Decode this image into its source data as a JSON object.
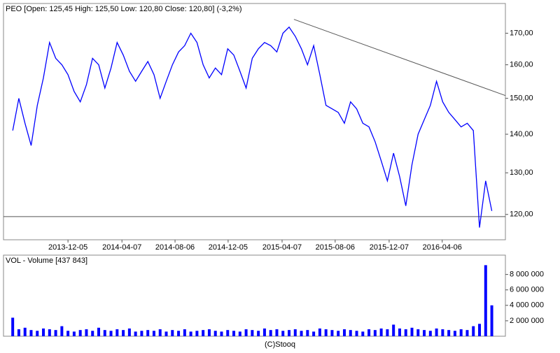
{
  "chart_data": [
    {
      "type": "line",
      "title": "PEO [Open: 125,45  High: 125,50  Low: 120,80  Close: 120,80] (-3,2%)",
      "log_scale": true,
      "color": "#0000ff",
      "x": [
        "2013-08-01",
        "2013-08-15",
        "2013-08-29",
        "2013-09-12",
        "2013-09-26",
        "2013-10-10",
        "2013-10-24",
        "2013-11-07",
        "2013-11-21",
        "2013-12-05",
        "2013-12-19",
        "2014-01-02",
        "2014-01-16",
        "2014-01-30",
        "2014-02-13",
        "2014-02-27",
        "2014-03-13",
        "2014-03-27",
        "2014-04-10",
        "2014-04-24",
        "2014-05-08",
        "2014-05-22",
        "2014-06-05",
        "2014-06-19",
        "2014-07-03",
        "2014-07-17",
        "2014-07-31",
        "2014-08-14",
        "2014-08-28",
        "2014-09-11",
        "2014-09-25",
        "2014-10-09",
        "2014-10-23",
        "2014-11-06",
        "2014-11-20",
        "2014-12-04",
        "2014-12-18",
        "2015-01-01",
        "2015-01-15",
        "2015-01-29",
        "2015-02-12",
        "2015-02-26",
        "2015-03-12",
        "2015-03-26",
        "2015-04-09",
        "2015-04-23",
        "2015-05-07",
        "2015-05-21",
        "2015-06-04",
        "2015-06-18",
        "2015-07-02",
        "2015-07-16",
        "2015-07-30",
        "2015-08-13",
        "2015-08-27",
        "2015-09-10",
        "2015-09-24",
        "2015-10-08",
        "2015-10-22",
        "2015-11-05",
        "2015-11-19",
        "2015-12-03",
        "2015-12-17",
        "2015-12-31",
        "2016-01-14",
        "2016-01-28",
        "2016-02-11",
        "2016-02-25",
        "2016-03-10",
        "2016-03-24",
        "2016-04-07",
        "2016-04-21",
        "2016-05-05",
        "2016-05-19",
        "2016-06-02",
        "2016-06-16",
        "2016-06-30",
        "2016-07-14",
        "2016-07-28"
      ],
      "values": [
        141,
        150,
        143,
        137,
        148,
        156,
        167,
        162,
        160,
        157,
        152,
        149,
        154,
        162,
        160,
        153,
        159,
        167,
        163,
        158,
        155,
        158,
        161,
        157,
        150,
        155,
        160,
        164,
        166,
        170,
        167,
        160,
        156,
        159,
        157,
        165,
        163,
        158,
        153,
        162,
        165,
        167,
        166,
        164,
        170,
        172,
        169,
        165,
        160,
        166,
        157,
        148,
        147,
        146,
        143,
        149,
        147,
        143,
        142,
        138,
        133,
        128,
        135,
        129,
        122,
        132,
        140,
        144,
        148,
        155,
        149,
        146,
        144,
        142,
        143,
        141,
        117,
        128,
        120.8
      ],
      "xlim": [
        "2013-07-11",
        "2016-08-28"
      ],
      "xticks": [
        "2013-12-05",
        "2014-04-07",
        "2014-08-06",
        "2014-12-05",
        "2015-04-07",
        "2015-08-06",
        "2015-12-07",
        "2016-04-06"
      ],
      "ylim": [
        114.3,
        180
      ],
      "yticks": [
        {
          "value": 120,
          "label": "120,00"
        },
        {
          "value": 130,
          "label": "130,00"
        },
        {
          "value": 140,
          "label": "140,00"
        },
        {
          "value": 150,
          "label": "150,00"
        },
        {
          "value": 160,
          "label": "160,00"
        },
        {
          "value": 170,
          "label": "170,00"
        }
      ],
      "trendline": {
        "x": [
          "2015-05-04",
          "2016-08-28"
        ],
        "values": [
          174.6,
          150.8
        ]
      },
      "hline": 119.5
    },
    {
      "type": "bar",
      "title": "VOL - Volume [437 843]",
      "color": "#0000ff",
      "values": [
        2400000,
        900000,
        1100000,
        800000,
        700000,
        1000000,
        900000,
        800000,
        1300000,
        700000,
        600000,
        800000,
        900000,
        700000,
        1100000,
        800000,
        700000,
        900000,
        800000,
        1000000,
        600000,
        700000,
        800000,
        700000,
        900000,
        600000,
        800000,
        700000,
        900000,
        600000,
        700000,
        800000,
        900000,
        700000,
        600000,
        800000,
        700000,
        600000,
        900000,
        800000,
        700000,
        1000000,
        800000,
        900000,
        700000,
        800000,
        900000,
        700000,
        800000,
        600000,
        1000000,
        900000,
        800000,
        700000,
        900000,
        800000,
        700000,
        600000,
        900000,
        800000,
        1000000,
        900000,
        1500000,
        1000000,
        900000,
        1100000,
        900000,
        800000,
        700000,
        1000000,
        900000,
        800000,
        700000,
        900000,
        800000,
        1300000,
        1600000,
        9200000,
        4000000
      ],
      "ylim": [
        0,
        10500000
      ],
      "yticks": [
        {
          "value": 2000000,
          "label": "2 000 000"
        },
        {
          "value": 4000000,
          "label": "4 000 000"
        },
        {
          "value": 6000000,
          "label": "6 000 000"
        },
        {
          "value": 8000000,
          "label": "8 000 000"
        }
      ]
    }
  ],
  "source": "(C)Stooq"
}
